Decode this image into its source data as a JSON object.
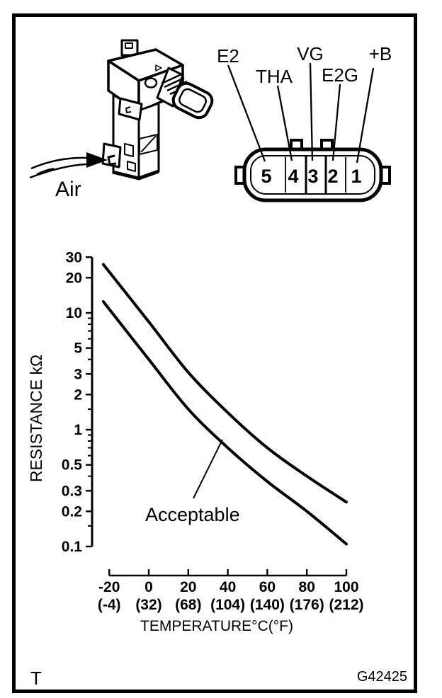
{
  "figure": {
    "corner_label": "T",
    "figure_code": "G42425"
  },
  "sensor": {
    "air_label": "Air"
  },
  "connector": {
    "pins": [
      {
        "number": "5",
        "signal": "E2"
      },
      {
        "number": "4",
        "signal": "THA"
      },
      {
        "number": "3",
        "signal": "VG"
      },
      {
        "number": "2",
        "signal": "E2G"
      },
      {
        "number": "1",
        "signal": "+B"
      }
    ]
  },
  "chart_data": {
    "type": "line",
    "title": "",
    "xlabel": "TEMPERATURE°C(°F)",
    "ylabel": "RESISTANCE kΩ",
    "y_scale": "log",
    "xlim": [
      -20,
      100
    ],
    "ylim": [
      0.1,
      30
    ],
    "grid": false,
    "x_ticks": [
      {
        "c": "-20",
        "f": "(-4)"
      },
      {
        "c": "0",
        "f": "(32)"
      },
      {
        "c": "20",
        "f": "(68)"
      },
      {
        "c": "40",
        "f": "(104)"
      },
      {
        "c": "60",
        "f": "(140)"
      },
      {
        "c": "80",
        "f": "(176)"
      },
      {
        "c": "100",
        "f": "(212)"
      }
    ],
    "y_major_ticks": [
      30,
      20,
      10,
      5,
      3,
      2,
      1,
      0.5,
      0.3,
      0.2,
      0.1
    ],
    "y_minor_ticks": [
      9,
      8,
      7,
      6,
      4,
      1.5,
      0.9,
      0.8,
      0.7,
      0.6,
      0.4,
      0.15
    ],
    "annotation": "Acceptable",
    "series": [
      {
        "name": "upper-limit",
        "x": [
          -23,
          0,
          20,
          40,
          60,
          80,
          100
        ],
        "values": [
          26,
          8.4,
          3.1,
          1.4,
          0.7,
          0.4,
          0.24
        ]
      },
      {
        "name": "lower-limit",
        "x": [
          -23,
          0,
          20,
          40,
          60,
          80,
          100
        ],
        "values": [
          12.5,
          4.0,
          1.5,
          0.7,
          0.36,
          0.2,
          0.105
        ]
      }
    ]
  },
  "colors": {
    "ink": "#000000",
    "paper": "#ffffff"
  }
}
